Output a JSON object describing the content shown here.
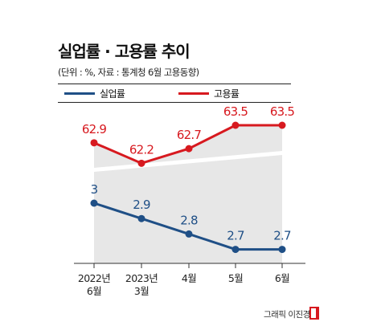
{
  "header": {
    "title": "실업률 · 고용률 추이",
    "subtitle": "(단위 : %, 자료 : 통계청 6월 고용동향)"
  },
  "credit": {
    "text": "그래픽 이진경"
  },
  "colors": {
    "unemployment": "#1f4f86",
    "employment": "#d7191f",
    "band": "#e7e7e7"
  },
  "chart_data": {
    "type": "line",
    "categories": [
      "2022년 6월",
      "2023년 3월",
      "4월",
      "5월",
      "6월"
    ],
    "series": [
      {
        "name": "실업률",
        "values": [
          3.0,
          2.9,
          2.8,
          2.7,
          2.7
        ],
        "labels": [
          "3",
          "2.9",
          "2.8",
          "2.7",
          "2.7"
        ]
      },
      {
        "name": "고용률",
        "values": [
          62.9,
          62.2,
          62.7,
          63.5,
          63.5
        ],
        "labels": [
          "62.9",
          "62.2",
          "62.7",
          "63.5",
          "63.5"
        ]
      }
    ],
    "legend_position": "top-left",
    "grid": false,
    "axis_break": true
  }
}
